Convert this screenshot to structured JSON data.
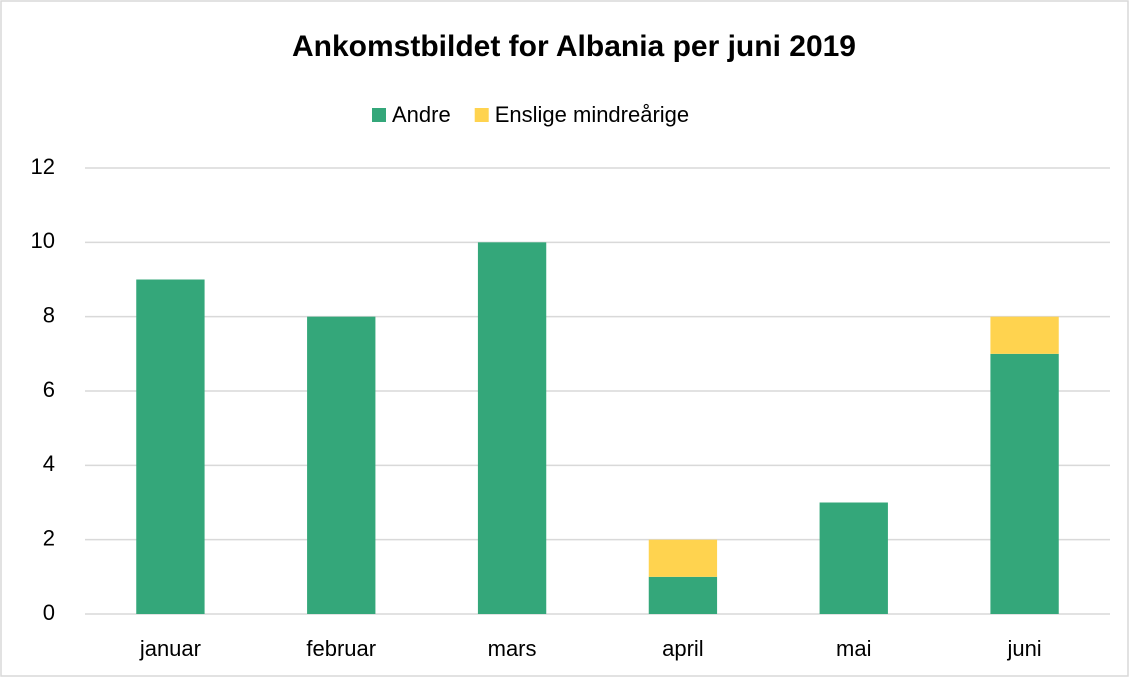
{
  "chart_data": {
    "type": "stacked_bar",
    "title": "Ankomstbildet for Albania per juni 2019",
    "categories": [
      "januar",
      "februar",
      "mars",
      "april",
      "mai",
      "juni"
    ],
    "series": [
      {
        "name": "Andre",
        "color": "#34a77a",
        "values": [
          9,
          8,
          10,
          1,
          3,
          7
        ]
      },
      {
        "name": "Enslige mindreårige",
        "color": "#ffd34f",
        "values": [
          0,
          0,
          0,
          1,
          0,
          1
        ]
      }
    ],
    "ylim": [
      0,
      12
    ],
    "yticks": [
      0,
      2,
      4,
      6,
      8,
      10,
      12
    ],
    "grid": true,
    "legend": "top"
  }
}
